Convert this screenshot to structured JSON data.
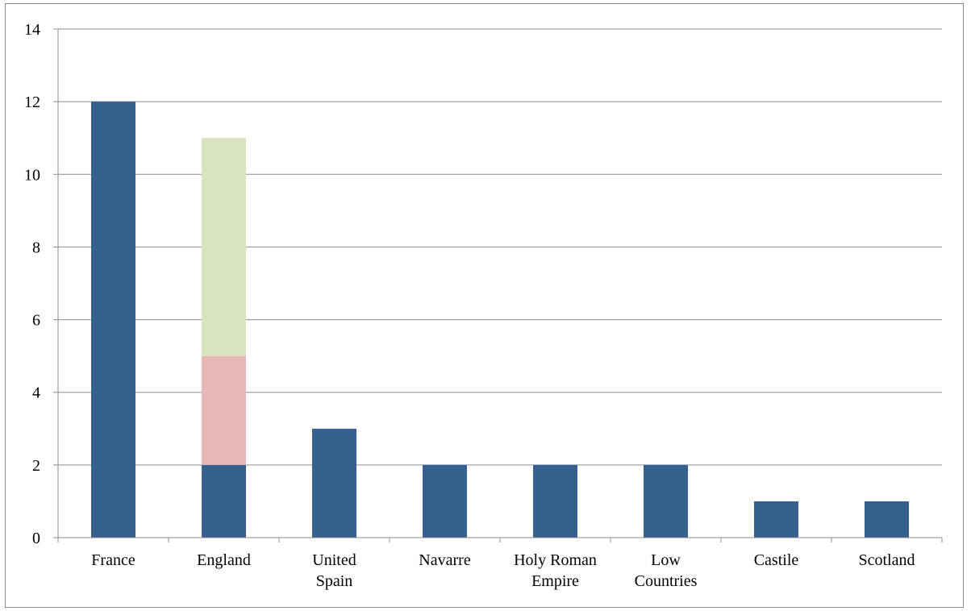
{
  "chart_data": {
    "type": "bar",
    "stacked": true,
    "categories": [
      [
        "France"
      ],
      [
        "England"
      ],
      [
        "United",
        "Spain"
      ],
      [
        "Navarre"
      ],
      [
        "Holy Roman",
        "Empire"
      ],
      [
        "Low",
        "Countries"
      ],
      [
        "Castile"
      ],
      [
        "Scotland"
      ]
    ],
    "series": [
      {
        "color": "#36618f",
        "values": [
          12,
          2,
          3,
          2,
          2,
          2,
          1,
          1
        ]
      },
      {
        "color": "#e6b8b7",
        "values": [
          0,
          3,
          0,
          0,
          0,
          0,
          0,
          0
        ]
      },
      {
        "color": "#d7e4bd",
        "values": [
          0,
          6,
          0,
          0,
          0,
          0,
          0,
          0
        ]
      }
    ],
    "title": "",
    "xlabel": "",
    "ylabel": "",
    "ylim": [
      0,
      14
    ],
    "yticks": [
      "0",
      "2",
      "4",
      "6",
      "8",
      "10",
      "12",
      "14"
    ],
    "grid": true,
    "legend": "none"
  }
}
